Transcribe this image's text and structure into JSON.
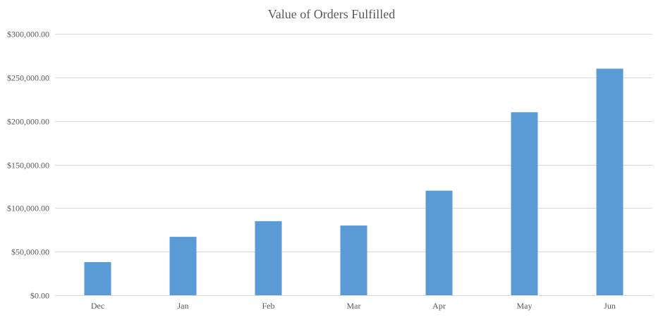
{
  "chart_data": {
    "type": "bar",
    "title": "Value  of Orders Fulfilled",
    "categories": [
      "Dec",
      "Jan",
      "Feb",
      "Mar",
      "Apr",
      "May",
      "Jun"
    ],
    "values": [
      38000,
      67000,
      85000,
      80000,
      120000,
      210000,
      260000
    ],
    "ylim": [
      0,
      300000
    ],
    "yticks": [
      0,
      50000,
      100000,
      150000,
      200000,
      250000,
      300000
    ],
    "ytick_labels": [
      "$0.00",
      "$50,000.00",
      "$100,000.00",
      "$150,000.00",
      "$200,000.00",
      "$250,000.00",
      "$300,000.00"
    ],
    "grid": true,
    "legend": "none",
    "bar_color": "#5b9bd5",
    "grid_color": "#d9d9d9",
    "text_color": "#595959"
  }
}
